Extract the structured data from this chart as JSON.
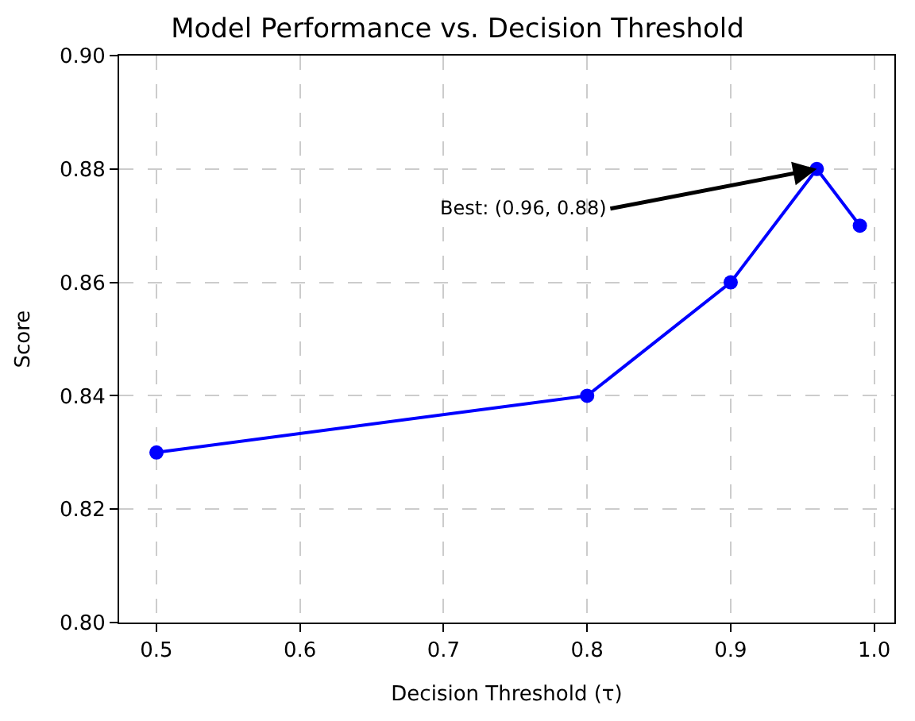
{
  "chart_data": {
    "type": "line",
    "title": "Model Performance vs. Decision Threshold",
    "xlabel": "Decision Threshold (τ)",
    "ylabel": "Score",
    "x": [
      0.5,
      0.8,
      0.9,
      0.96,
      0.99
    ],
    "series": [
      {
        "color": "#0000ff",
        "values": [
          0.83,
          0.84,
          0.86,
          0.88,
          0.87
        ]
      }
    ],
    "xlim": [
      0.474,
      1.014
    ],
    "xticks": [
      0.5,
      0.6,
      0.7,
      0.8,
      0.9,
      {
        "value": 1.0,
        "label": "1.0"
      }
    ],
    "ylim": [
      0.8,
      0.9
    ],
    "yticks": [
      {
        "value": 0.8,
        "label": "0.80"
      },
      0.82,
      0.84,
      0.86,
      0.88,
      {
        "value": 0.9,
        "label": "0.90"
      }
    ],
    "annotations": [
      {
        "text": "Best: (0.96, 0.88)",
        "x": 0.96,
        "y": 0.88
      }
    ],
    "grid": true,
    "marker": "circle",
    "line_style": "solid",
    "legend": false
  }
}
